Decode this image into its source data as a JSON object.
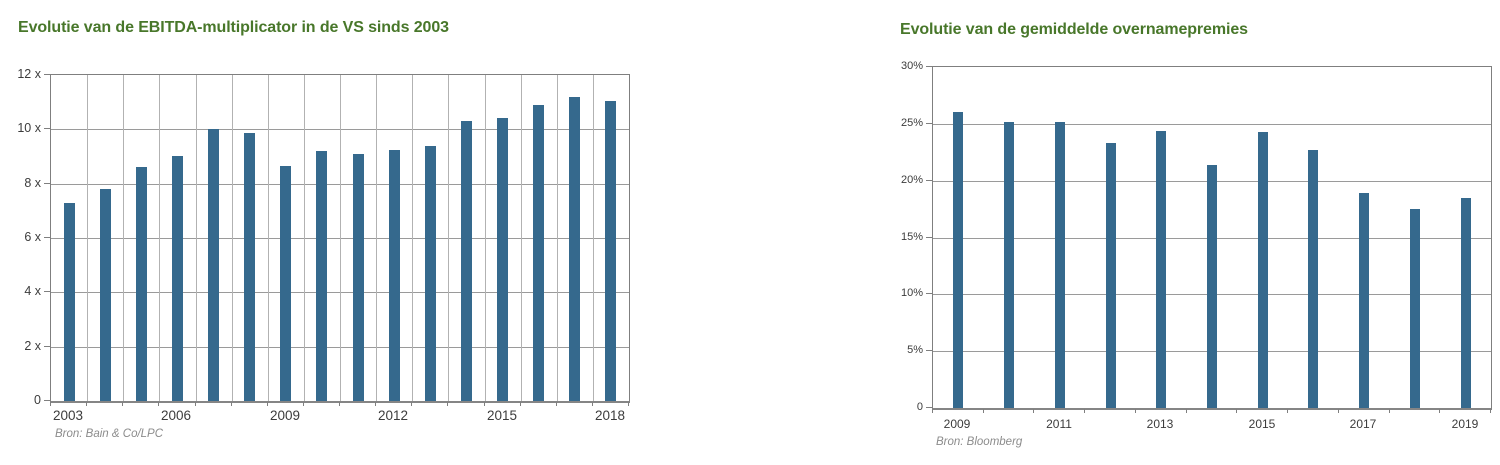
{
  "page": {
    "background": "#ffffff"
  },
  "colors": {
    "title_green": "#48772a",
    "bar_blue": "#35698d",
    "hgrid_gray": "#9a9a9a",
    "vgrid_gray": "#b2b2b2",
    "frame_gray": "#7f7f7f",
    "axis_text": "#3c3c3c",
    "source_text": "#8c8c8c"
  },
  "chart_data": [
    {
      "type": "bar",
      "title": "Evolutie van de EBITDA-multiplicator in de VS sinds 2003",
      "source": "Bron: Bain & Co/LPC",
      "categories": [
        "2003",
        "2004",
        "2005",
        "2006",
        "2007",
        "2008",
        "2009",
        "2010",
        "2011",
        "2012",
        "2013",
        "2014",
        "2015",
        "2016",
        "2017",
        "2018"
      ],
      "values": [
        7.3,
        7.8,
        8.6,
        9.0,
        10.0,
        9.85,
        8.65,
        9.2,
        9.1,
        9.25,
        9.4,
        10.3,
        10.4,
        10.9,
        11.2,
        11.05
      ],
      "unit": "x",
      "ylim": [
        0,
        12
      ],
      "ytick_step": 2,
      "ytick_labels": [
        "0",
        "2 x",
        "4 x",
        "6 x",
        "8 x",
        "10 x",
        "12 x"
      ],
      "xtick_labels": [
        "2003",
        "2006",
        "2009",
        "2012",
        "2015",
        "2018"
      ],
      "grid": {
        "horizontal": true,
        "vertical": true
      },
      "legend": "none"
    },
    {
      "type": "bar",
      "title": "Evolutie van de gemiddelde overnamepremies",
      "source": "Bron: Bloomberg",
      "categories": [
        "2009",
        "2010",
        "2011",
        "2012",
        "2013",
        "2014",
        "2015",
        "2016",
        "2017",
        "2018",
        "2019"
      ],
      "values": [
        26.0,
        25.2,
        25.2,
        23.3,
        24.4,
        21.4,
        24.3,
        22.7,
        18.9,
        17.5,
        18.5
      ],
      "unit": "%",
      "ylim": [
        0,
        30
      ],
      "ytick_step": 5,
      "ytick_labels": [
        "0",
        "5%",
        "10%",
        "15%",
        "20%",
        "25%",
        "30%"
      ],
      "xtick_labels": [
        "2009",
        "2011",
        "2013",
        "2015",
        "2017",
        "2019"
      ],
      "grid": {
        "horizontal": true,
        "vertical": false
      },
      "legend": "none"
    }
  ]
}
